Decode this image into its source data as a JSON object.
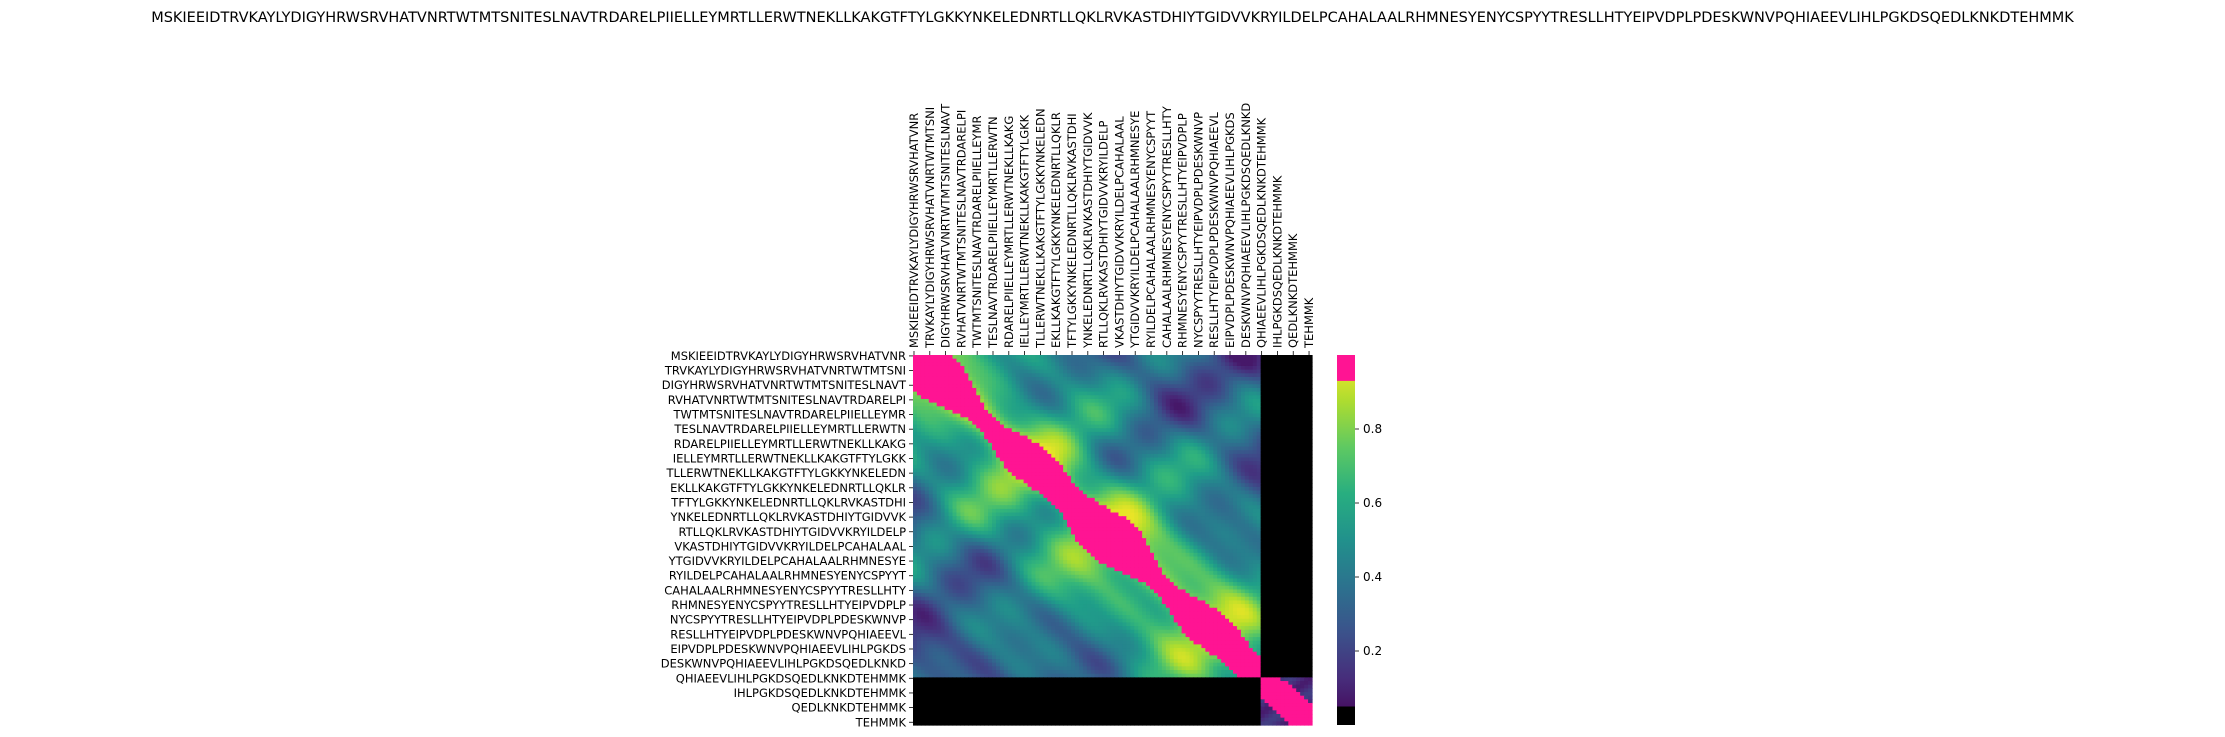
{
  "chart_data": {
    "type": "heatmap",
    "title": "MSKIEEIDTRVKAYLYDIGYHRWSRVHATVNRTWTMTSNITESLNAVTRDARELPIIELLEYMRTLLERWTNEKLLKAKGTFTYLGKKYNKELEDNRTLLQKLRVKASTDHIYTGIDVVKRYILDELPCAHALAALRHMNESYENYCSPYYTRESLLHTYEIPVDPLPDESKWNVPQHIAEEVLIHLPGKDSQEDLKNKDTEHMMK",
    "xticklabels": [
      "MSKIEEIDTRVKAYLYDIGYHRWSRVHATVNR",
      "TRVKAYLYDIGYHRWSRVHATVNRTWTMTSNI",
      "DIGYHRWSRVHATVNRTWTMTSNITESLNAVT",
      "RVHATVNRTWTMTSNITESLNAVTRDARELPI",
      "TWTMTSNITESLNAVTRDARELPIIELLEYMR",
      "TESLNAVTRDARELPIIELLEYMRTLLERWTN",
      "RDARELPIIELLEYMRTLLERWTNEKLLKAKG",
      "IELLEYMRTLLERWTNEKLLKAKGTFTYLGKK",
      "TLLERWTNEKLLKAKGTFTYLGKKYNKELEDN",
      "EKLLKAKGTFTYLGKKYNKELEDNRTLLQKLR",
      "TFTYLGKKYNKELEDNRTLLQKLRVKASTDHI",
      "YNKELEDNRTLLQKLRVKASTDHIYTGIDVVK",
      "RTLLQKLRVKASTDHIYTGIDVVKRYILDELP",
      "VKASTDHIYTGIDVVKRYILDELPCAHALAAL",
      "YTGIDVVKRYILDELPCAHALAALRHMNESYE",
      "RYILDELPCAHALAALRHMNESYENYCSPYYT",
      "CAHALAALRHMNESYENYCSPYYTRESLLHTY",
      "RHMNESYENYCSPYYTRESLLHTYEIPVDPLP",
      "NYCSPYYTRESLLHTYEIPVDPLPDESKWNVP",
      "RESLLHTYEIPVDPLPDESKWNVPQHIAEEVL",
      "EIPVDPLPDESKWNVPQHIAEEVLIHLPGKDS",
      "DESKWNVPQHIAEEVLIHLPGKDSQEDLKNKD",
      "QHIAEEVLIHLPGKDSQEDLKNKDTEHMMK",
      "IHLPGKDSQEDLKNKDTEHMMK",
      "QEDLKNKDTEHMMK",
      "TEHMMK"
    ],
    "yticklabels": [
      "MSKIEEIDTRVKAYLYDIGYHRWSRVHATVNR",
      "TRVKAYLYDIGYHRWSRVHATVNRTWTMTSNI",
      "DIGYHRWSRVHATVNRTWTMTSNITESLNAVT",
      "RVHATVNRTWTMTSNITESLNAVTRDARELPI",
      "TWTMTSNITESLNAVTRDARELPIIELLEYMR",
      "TESLNAVTRDARELPIIELLEYMRTLLERWTN",
      "RDARELPIIELLEYMRTLLERWTNEKLLKAKG",
      "IELLEYMRTLLERWTNEKLLKAKGTFTYLGKK",
      "TLLERWTNEKLLKAKGTFTYLGKKYNKELEDN",
      "EKLLKAKGTFTYLGKKYNKELEDNRTLLQKLR",
      "TFTYLGKKYNKELEDNRTLLQKLRVKASTDHI",
      "YNKELEDNRTLLQKLRVKASTDHIYTGIDVVK",
      "RTLLQKLRVKASTDHIYTGIDVVKRYILDELP",
      "VKASTDHIYTGIDVVKRYILDELPCAHALAAL",
      "YTGIDVVKRYILDELPCAHALAALRHMNESYE",
      "RYILDELPCAHALAALRHMNESYENYCSPYYT",
      "CAHALAALRHMNESYENYCSPYYTRESLLHTY",
      "RHMNESYENYCSPYYTRESLLHTYEIPVDPLP",
      "NYCSPYYTRESLLHTYEIPVDPLPDESKWNVP",
      "RESLLHTYEIPVDPLPDESKWNVPQHIAEEVL",
      "EIPVDPLPDESKWNVPQHIAEEVLIHLPGKDS",
      "DESKWNVPQHIAEEVLIHLPGKDSQEDLKNKD",
      "QHIAEEVLIHLPGKDSQEDLKNKDTEHMMK",
      "IHLPGKDSQEDLKNKDTEHMMK",
      "QEDLKNKDTEHMMK",
      "TEHMMK"
    ],
    "sequence_length": 202,
    "window": 32,
    "stride": 8,
    "colorbar_ticks": [
      0.2,
      0.4,
      0.6,
      0.8
    ],
    "colorbar_range": [
      0.0,
      1.0
    ],
    "colormap": "viridis",
    "highlight_color": "#ff1493",
    "highlight_threshold": 0.93,
    "zero_color": "#000000",
    "cells": [
      {
        "row_range": [
          0,
          176
        ],
        "col_range": [
          176,
          202
        ],
        "value": 0.0
      },
      {
        "row_range": [
          176,
          202
        ],
        "col_range": [
          0,
          176
        ],
        "value": 0.0
      },
      {
        "row_range": [
          176,
          202
        ],
        "col_range": [
          176,
          202
        ],
        "value": 0.15
      }
    ]
  }
}
